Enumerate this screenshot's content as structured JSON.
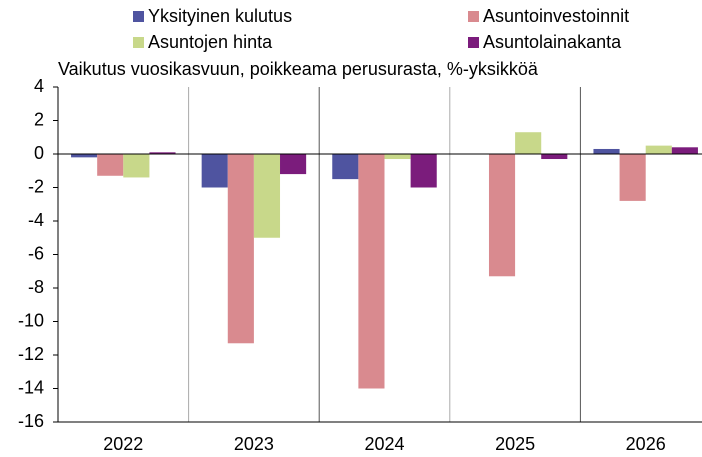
{
  "chart_data": {
    "type": "bar",
    "title": "Vaikutus vuosikasvuun, poikkeama perusurasta, %-yksikköä",
    "categories": [
      "2022",
      "2023",
      "2024",
      "2025",
      "2026"
    ],
    "series": [
      {
        "name": "Yksityinen kulutus",
        "color": "#4f54a0",
        "values": [
          -0.2,
          -2.0,
          -1.5,
          0,
          0.3
        ]
      },
      {
        "name": "Asuntoinvestoinnit",
        "color": "#d98a8f",
        "values": [
          -1.3,
          -11.3,
          -14.0,
          -7.3,
          -2.8
        ]
      },
      {
        "name": "Asuntojen hinta",
        "color": "#c8d88a",
        "values": [
          -1.4,
          -5.0,
          -0.3,
          1.3,
          0.5
        ]
      },
      {
        "name": "Asuntolainakanta",
        "color": "#7b1c7c",
        "values": [
          0.1,
          -1.2,
          -2.0,
          -0.3,
          0.4
        ]
      }
    ],
    "ylim": [
      -16,
      4
    ],
    "yticks": [
      -16,
      -14,
      -12,
      -10,
      -8,
      -6,
      -4,
      -2,
      0,
      2,
      4
    ],
    "grid": true
  }
}
